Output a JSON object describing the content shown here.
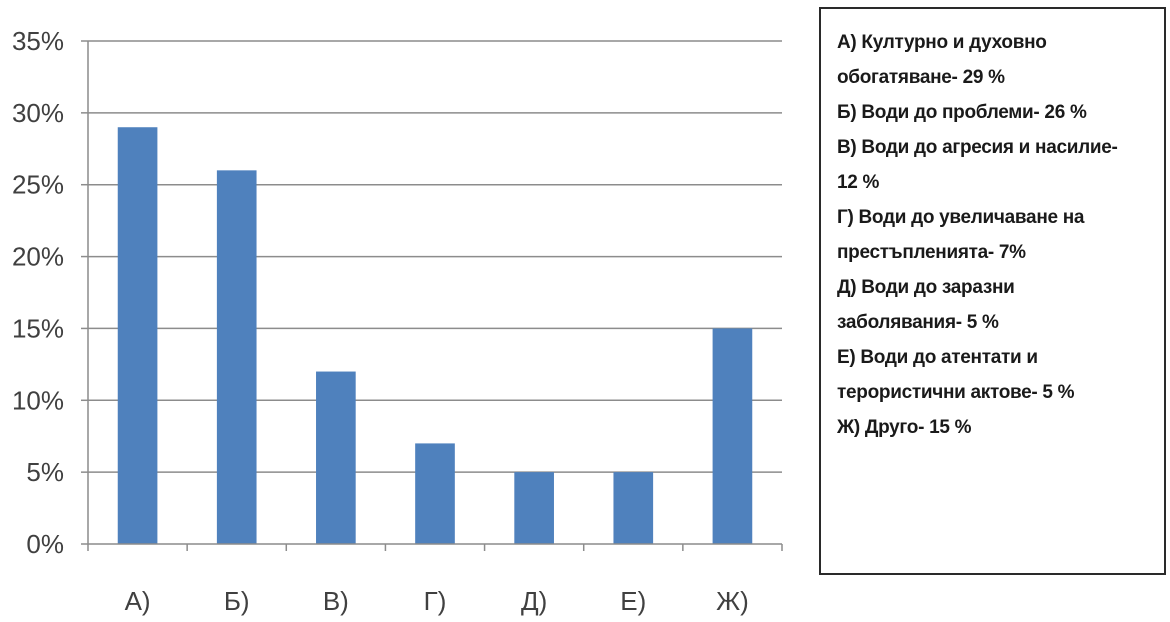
{
  "chart_data": {
    "type": "bar",
    "categories": [
      "А)",
      "Б)",
      "В)",
      "Г)",
      "Д)",
      "Е)",
      "Ж)"
    ],
    "values": [
      29,
      26,
      12,
      7,
      5,
      5,
      15
    ],
    "unit": "%",
    "ylim": [
      0,
      35
    ],
    "yticks": [
      "0%",
      "5%",
      "10%",
      "15%",
      "20%",
      "25%",
      "30%",
      "35%"
    ],
    "grid": true,
    "bar_color": "#4f81bd",
    "legend_placement": "right",
    "legend_lines": [
      "А) Културно и духовно",
      "обогатяване- 29 %",
      "Б) Води до проблеми- 26 %",
      "В) Води до агресия и насилие-",
      "12 %",
      "Г) Води до увеличаване на",
      "престъпленията- 7%",
      "Д) Води до заразни",
      "заболявания- 5 %",
      "Е) Води до атентати и",
      "терористични актове- 5 %",
      "Ж) Друго- 15 %"
    ]
  }
}
